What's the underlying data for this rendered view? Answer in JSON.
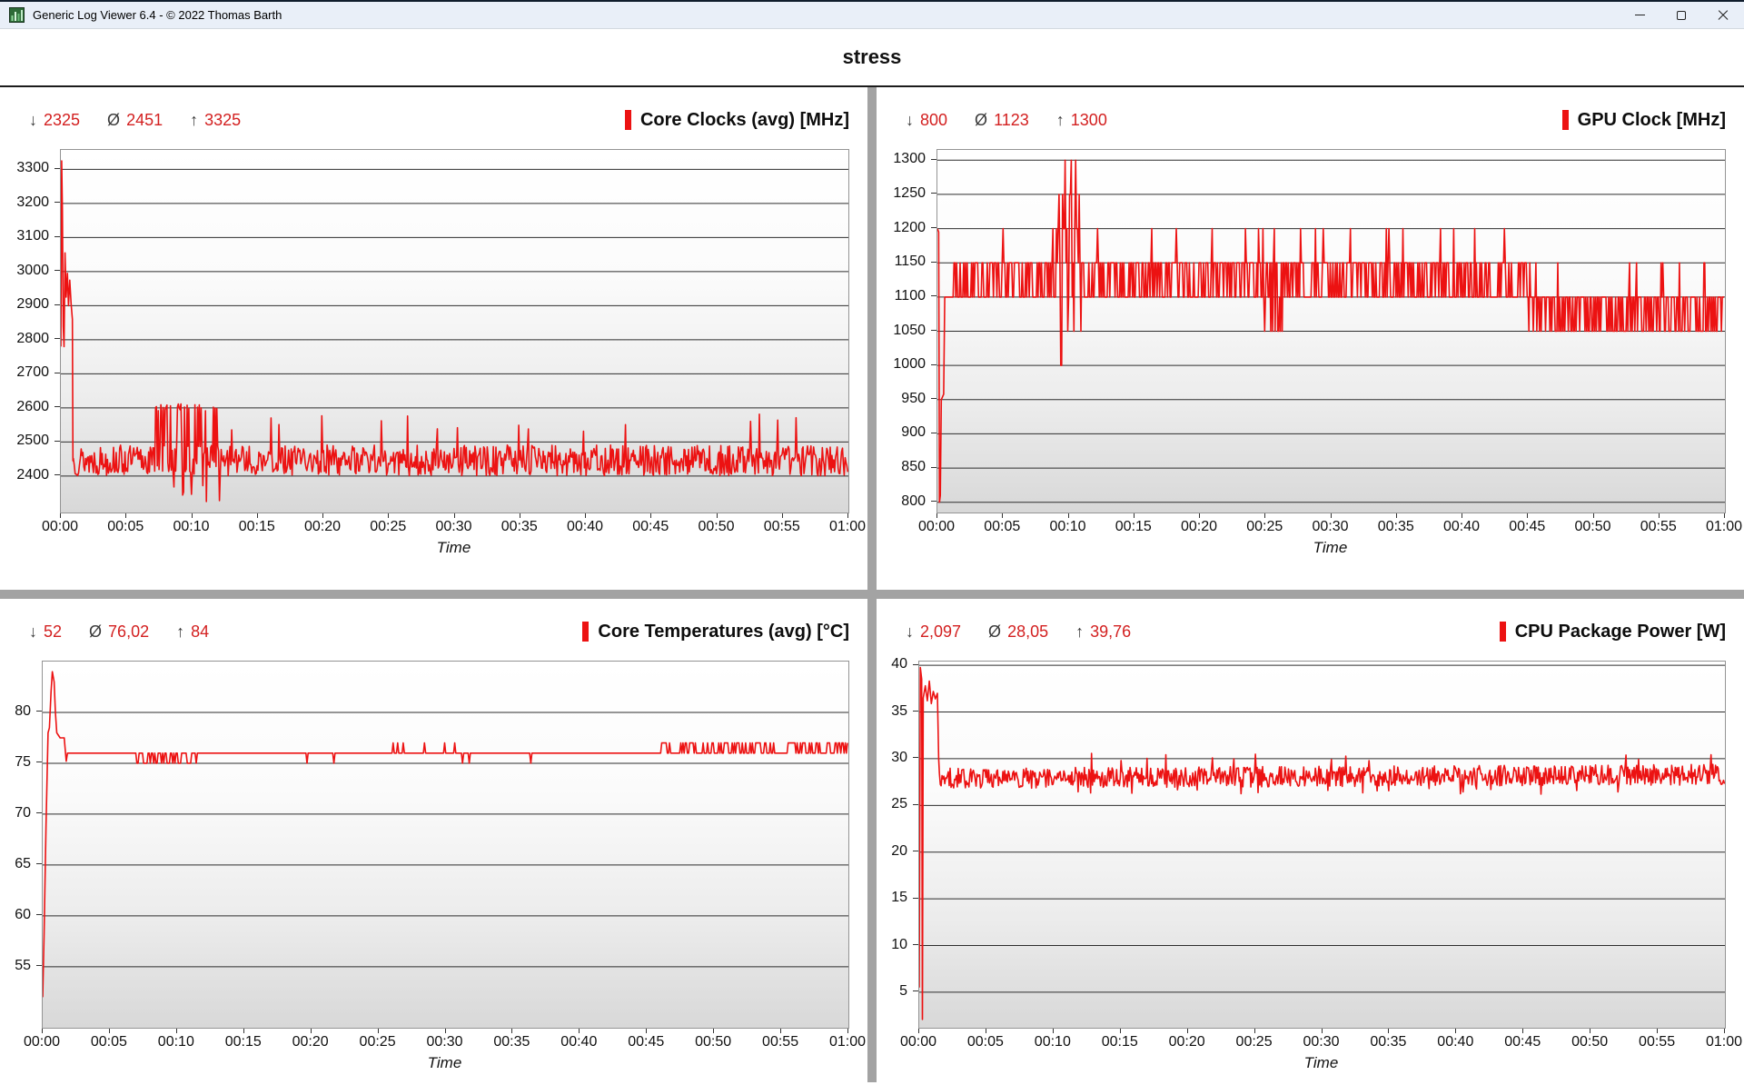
{
  "window": {
    "title": "Generic Log Viewer 6.4 - © 2022 Thomas Barth",
    "icons": {
      "app_icon": "green-log-chart",
      "minimize_icon": "–",
      "maximize_icon": "□",
      "close_icon": "✕"
    }
  },
  "header": {
    "title": "stress"
  },
  "colors": {
    "line_red": "#ec1212",
    "stat_value_red": "#d32020",
    "legend_bar_red": "#ec1212",
    "divider_gray": "#a3a3a3",
    "grid_line": "#2d2d2d",
    "plot_border": "#949494",
    "titlebar_bg": "#e9eff8"
  },
  "chart_data": [
    {
      "type": "line",
      "title": "Core Clocks (avg) [MHz]",
      "stats": {
        "min_symbol": "↓",
        "min": "2325",
        "avg_symbol": "Ø",
        "avg": "2451",
        "max_symbol": "↑",
        "max": "3325"
      },
      "xlabel": "Time",
      "xticks": [
        "00:00",
        "00:05",
        "00:10",
        "00:15",
        "00:20",
        "00:25",
        "00:30",
        "00:35",
        "00:40",
        "00:45",
        "00:50",
        "00:55",
        "01:00"
      ],
      "x_minutes": [
        0,
        5,
        10,
        15,
        20,
        25,
        30,
        35,
        40,
        45,
        50,
        55,
        60
      ],
      "xlim": [
        0,
        60
      ],
      "ylim": [
        2293,
        3357
      ],
      "yticks": [
        2400,
        2500,
        2600,
        2700,
        2800,
        2900,
        3000,
        3100,
        3200,
        3300
      ],
      "grid": true,
      "legend_position": "top-right",
      "series": {
        "head_points": [
          [
            0,
            2780
          ],
          [
            0.06,
            3325
          ],
          [
            0.12,
            3180
          ],
          [
            0.18,
            2840
          ],
          [
            0.24,
            2780
          ],
          [
            0.32,
            3055
          ],
          [
            0.4,
            2925
          ],
          [
            0.5,
            2995
          ],
          [
            0.58,
            2900
          ],
          [
            0.68,
            2975
          ],
          [
            0.78,
            2905
          ],
          [
            0.88,
            2860
          ],
          [
            0.92,
            2445
          ]
        ],
        "noise": {
          "t0": 0.95,
          "t1": 60,
          "step_s": 4,
          "seed": 13,
          "keypoints": [
            [
              0.95,
              2446,
              45
            ],
            [
              60,
              2446,
              45
            ]
          ]
        },
        "bursts": [
          {
            "t0": 7.2,
            "t1": 12.2,
            "prob": 0.3,
            "vmin": 2590,
            "vmax": 2612
          },
          {
            "t0": 7.2,
            "t1": 12.2,
            "prob": 0.1,
            "vmin": 2325,
            "vmax": 2375
          },
          {
            "t0": 13,
            "t1": 60,
            "prob": 0.022,
            "vmin": 2530,
            "vmax": 2585
          }
        ]
      }
    },
    {
      "type": "line",
      "title": "GPU Clock [MHz]",
      "stats": {
        "min_symbol": "↓",
        "min": "800",
        "avg_symbol": "Ø",
        "avg": "1123",
        "max_symbol": "↑",
        "max": "1300"
      },
      "xlabel": "Time",
      "xticks": [
        "00:00",
        "00:05",
        "00:10",
        "00:15",
        "00:20",
        "00:25",
        "00:30",
        "00:35",
        "00:40",
        "00:45",
        "00:50",
        "00:55",
        "01:00"
      ],
      "x_minutes": [
        0,
        5,
        10,
        15,
        20,
        25,
        30,
        35,
        40,
        45,
        50,
        55,
        60
      ],
      "xlim": [
        0,
        60
      ],
      "ylim": [
        785,
        1315
      ],
      "yticks": [
        800,
        850,
        900,
        950,
        1000,
        1050,
        1100,
        1150,
        1200,
        1250,
        1300
      ],
      "grid": true,
      "legend_position": "top-right",
      "series": {
        "head_points": [
          [
            0,
            1200
          ],
          [
            0.1,
            1195
          ],
          [
            0.16,
            800
          ],
          [
            0.22,
            810
          ],
          [
            0.3,
            950
          ],
          [
            0.48,
            958
          ],
          [
            0.56,
            1100
          ]
        ],
        "noise": {
          "t0": 0.6,
          "t1": 60,
          "step_s": 4,
          "seed": 29,
          "quantize": 50,
          "keypoints": [
            [
              0.6,
              1127,
              28
            ],
            [
              9.0,
              1127,
              28
            ],
            [
              9.25,
              1172,
              132
            ],
            [
              10.9,
              1172,
              132
            ],
            [
              11.15,
              1127,
              28
            ],
            [
              44.5,
              1125,
              28
            ],
            [
              45.5,
              1079,
              33
            ],
            [
              60,
              1081,
              33
            ]
          ]
        },
        "bursts": [
          {
            "t0": 1,
            "t1": 44,
            "prob": 0.035,
            "vmin": 1200,
            "vmax": 1205
          },
          {
            "t0": 9.35,
            "t1": 9.65,
            "prob": 0.55,
            "vmin": 1000,
            "vmax": 1005
          },
          {
            "t0": 24.7,
            "t1": 26.3,
            "prob": 0.4,
            "vmin": 1050,
            "vmax": 1060
          },
          {
            "t0": 45,
            "t1": 60,
            "prob": 0.05,
            "vmin": 1150,
            "vmax": 1155
          }
        ]
      }
    },
    {
      "type": "line",
      "title": "Core Temperatures (avg) [°C]",
      "stats": {
        "min_symbol": "↓",
        "min": "52",
        "avg_symbol": "Ø",
        "avg": "76,02",
        "max_symbol": "↑",
        "max": "84"
      },
      "xlabel": "Time",
      "xticks": [
        "00:00",
        "00:05",
        "00:10",
        "00:15",
        "00:20",
        "00:25",
        "00:30",
        "00:35",
        "00:40",
        "00:45",
        "00:50",
        "00:55",
        "01:00"
      ],
      "x_minutes": [
        0,
        5,
        10,
        15,
        20,
        25,
        30,
        35,
        40,
        45,
        50,
        55,
        60
      ],
      "xlim": [
        0,
        60
      ],
      "ylim": [
        49,
        85
      ],
      "yticks": [
        55,
        60,
        65,
        70,
        75,
        80
      ],
      "grid": true,
      "legend_position": "top-right",
      "series": {
        "head_points": [
          [
            0,
            52
          ],
          [
            0.1,
            58
          ],
          [
            0.25,
            69
          ],
          [
            0.4,
            78
          ],
          [
            0.5,
            78.5
          ],
          [
            0.62,
            82
          ],
          [
            0.72,
            84
          ],
          [
            0.85,
            83
          ],
          [
            0.95,
            80
          ],
          [
            1.05,
            78
          ],
          [
            1.3,
            77.5
          ],
          [
            1.6,
            77.5
          ],
          [
            1.75,
            75.2
          ],
          [
            1.85,
            76
          ],
          [
            2.3,
            76
          ]
        ],
        "noise": {
          "t0": 2.35,
          "t1": 60,
          "step_s": 5,
          "seed": 41,
          "quantize": 1,
          "keypoints": [
            [
              2.35,
              76,
              0.4
            ],
            [
              60,
              76,
              0.4
            ]
          ]
        },
        "bursts": [
          {
            "t0": 7.0,
            "t1": 11.5,
            "prob": 0.4,
            "vmin": 74.8,
            "vmax": 75.4
          },
          {
            "t0": 19.5,
            "t1": 24.5,
            "prob": 0.05,
            "vmin": 74.9,
            "vmax": 75.2
          },
          {
            "t0": 21.5,
            "t1": 24.5,
            "prob": 0.05,
            "vmin": 76.8,
            "vmax": 77.2
          },
          {
            "t0": 26,
            "t1": 31,
            "prob": 0.06,
            "vmin": 76.8,
            "vmax": 77.2
          },
          {
            "t0": 29.5,
            "t1": 37,
            "prob": 0.05,
            "vmin": 74.9,
            "vmax": 75.2
          },
          {
            "t0": 46,
            "t1": 54.5,
            "prob": 0.4,
            "vmin": 76.8,
            "vmax": 77.3
          },
          {
            "t0": 55.5,
            "t1": 60,
            "prob": 0.5,
            "vmin": 76.8,
            "vmax": 77.3
          }
        ]
      }
    },
    {
      "type": "line",
      "title": "CPU Package Power [W]",
      "stats": {
        "min_symbol": "↓",
        "min": "2,097",
        "avg_symbol": "Ø",
        "avg": "28,05",
        "max_symbol": "↑",
        "max": "39,76"
      },
      "xlabel": "Time",
      "xticks": [
        "00:00",
        "00:05",
        "00:10",
        "00:15",
        "00:20",
        "00:25",
        "00:30",
        "00:35",
        "00:40",
        "00:45",
        "00:50",
        "00:55",
        "01:00"
      ],
      "x_minutes": [
        0,
        5,
        10,
        15,
        20,
        25,
        30,
        35,
        40,
        45,
        50,
        55,
        60
      ],
      "xlim": [
        0,
        60
      ],
      "ylim": [
        1.2,
        40.4
      ],
      "yticks": [
        5,
        10,
        15,
        20,
        25,
        30,
        35,
        40
      ],
      "grid": true,
      "legend_position": "top-right",
      "series": {
        "head_points": [
          [
            0,
            5.5
          ],
          [
            0.08,
            39.76
          ],
          [
            0.18,
            38.5
          ],
          [
            0.24,
            2.097
          ],
          [
            0.3,
            36.5
          ],
          [
            0.45,
            37.8
          ],
          [
            0.6,
            36.2
          ],
          [
            0.75,
            38.3
          ],
          [
            0.9,
            35.9
          ],
          [
            1.05,
            37.2
          ],
          [
            1.2,
            36.4
          ],
          [
            1.35,
            37.0
          ],
          [
            1.45,
            30
          ]
        ],
        "noise": {
          "t0": 1.5,
          "t1": 60,
          "step_s": 4,
          "seed": 57,
          "keypoints": [
            [
              1.5,
              27.9,
              1.1
            ],
            [
              30,
              28.1,
              1.1
            ],
            [
              60,
              28.3,
              1.1
            ]
          ]
        },
        "bursts": [
          {
            "t0": 2,
            "t1": 60,
            "prob": 0.02,
            "vmin": 29.8,
            "vmax": 30.6
          },
          {
            "t0": 2,
            "t1": 60,
            "prob": 0.02,
            "vmin": 26.2,
            "vmax": 26.8
          }
        ]
      }
    }
  ]
}
